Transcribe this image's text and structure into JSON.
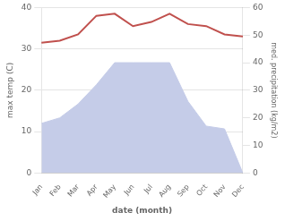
{
  "chart_data": {
    "type": "line",
    "xlabel": "date (month)",
    "ylabel": "max temp (C)",
    "y2label": "med. precipitation (kg/m2)",
    "categories": [
      "Jan",
      "Feb",
      "Mar",
      "Apr",
      "May",
      "Jun",
      "Jul",
      "Aug",
      "Sep",
      "Oct",
      "Nov",
      "Dec"
    ],
    "series": [
      {
        "type": "area",
        "color": "#c5cce8",
        "axis": "y2",
        "values": [
          18,
          20,
          25,
          32,
          40,
          40,
          40,
          40,
          26,
          17,
          16,
          0
        ]
      },
      {
        "type": "line",
        "color": "#c0504d",
        "values": [
          31.5,
          32.0,
          33.5,
          38.0,
          38.5,
          35.5,
          36.5,
          38.5,
          36.0,
          35.5,
          33.5,
          33.0
        ]
      }
    ],
    "ylim": [
      0,
      40
    ],
    "yticks": [
      0,
      10,
      20,
      30,
      40
    ],
    "y2lim": [
      0,
      60
    ],
    "y2ticks": [
      0,
      10,
      20,
      30,
      40,
      50,
      60
    ],
    "grid": true
  }
}
